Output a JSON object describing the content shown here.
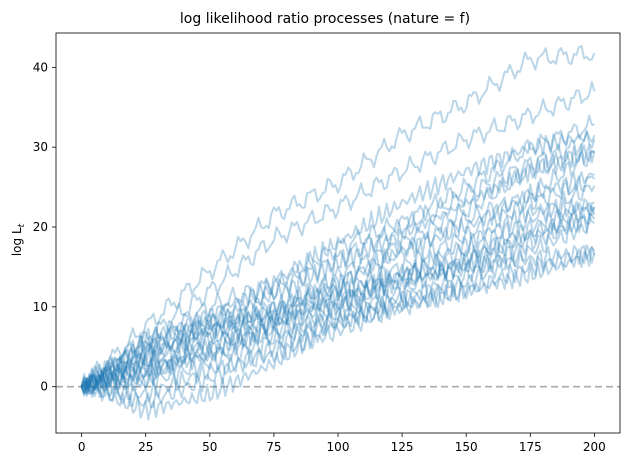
{
  "chart_data": {
    "type": "line",
    "title": "log likelihood ratio processes (nature = f)",
    "xlabel": "",
    "ylabel": "log L",
    "ylabel_subscript": "t",
    "xlim": [
      -10,
      210
    ],
    "ylim": [
      -5.8,
      44.3
    ],
    "xticks": [
      0,
      25,
      50,
      75,
      100,
      125,
      150,
      175,
      200
    ],
    "yticks": [
      0,
      10,
      20,
      30,
      40
    ],
    "grid": false,
    "line_color": "#1f77b4",
    "line_alpha": 0.3,
    "reference_line": {
      "y": 0,
      "style": "dashed",
      "color": "#aaaaaa"
    },
    "series": [
      {
        "x": [
          0,
          25,
          50,
          75,
          100,
          125,
          150,
          175,
          200
        ],
        "values": [
          0,
          7.5,
          14.5,
          21.5,
          25.5,
          31.5,
          35.5,
          41,
          41.8
        ]
      },
      {
        "x": [
          0,
          25,
          50,
          75,
          100,
          125,
          150,
          175,
          200
        ],
        "values": [
          0,
          6,
          12,
          18.5,
          22.5,
          27,
          31,
          34,
          37
        ]
      },
      {
        "x": [
          0,
          25,
          50,
          75,
          100,
          125,
          150,
          175,
          200
        ],
        "values": [
          0,
          5.5,
          10,
          13,
          17.5,
          20.5,
          25,
          30,
          32.8
        ]
      },
      {
        "x": [
          0,
          25,
          50,
          75,
          100,
          125,
          150,
          175,
          200
        ],
        "values": [
          0,
          4,
          8,
          12,
          16,
          20,
          24,
          28,
          31
        ]
      },
      {
        "x": [
          0,
          25,
          50,
          75,
          100,
          125,
          150,
          175,
          200
        ],
        "values": [
          0,
          5,
          8,
          9,
          14,
          18,
          22,
          27,
          29.5
        ]
      },
      {
        "x": [
          0,
          25,
          50,
          75,
          100,
          125,
          150,
          175,
          200
        ],
        "values": [
          0,
          3,
          6.5,
          9,
          13,
          17,
          21,
          24,
          29.3
        ]
      },
      {
        "x": [
          0,
          25,
          50,
          75,
          100,
          125,
          150,
          175,
          200
        ],
        "values": [
          0,
          2,
          5,
          8,
          12,
          15,
          19,
          23,
          26
        ]
      },
      {
        "x": [
          0,
          25,
          50,
          75,
          100,
          125,
          150,
          175,
          200
        ],
        "values": [
          0,
          1,
          5,
          7,
          10,
          14,
          17,
          21,
          25.2
        ]
      },
      {
        "x": [
          0,
          25,
          50,
          75,
          100,
          125,
          150,
          175,
          200
        ],
        "values": [
          0,
          2,
          4,
          6.5,
          9,
          12,
          16,
          19,
          22.5
        ]
      },
      {
        "x": [
          0,
          25,
          50,
          75,
          100,
          125,
          150,
          175,
          200
        ],
        "values": [
          0,
          0.5,
          3,
          6,
          8,
          11,
          14,
          18,
          21.5
        ]
      },
      {
        "x": [
          0,
          25,
          50,
          75,
          100,
          125,
          150,
          175,
          200
        ],
        "values": [
          0,
          -2,
          1,
          5,
          9,
          11,
          13,
          17,
          20.5
        ]
      },
      {
        "x": [
          0,
          25,
          50,
          75,
          100,
          125,
          150,
          175,
          200
        ],
        "values": [
          0,
          -1,
          2,
          4,
          7,
          10,
          12,
          15,
          16.8
        ]
      },
      {
        "x": [
          0,
          25,
          50,
          75,
          100,
          125,
          150,
          175,
          200
        ],
        "values": [
          0,
          1,
          6,
          8,
          10,
          13,
          16,
          20,
          23
        ]
      },
      {
        "x": [
          0,
          25,
          50,
          75,
          100,
          125,
          150,
          175,
          200
        ],
        "values": [
          0,
          4,
          7,
          10,
          12,
          14,
          15,
          16,
          17
        ]
      },
      {
        "x": [
          0,
          25,
          50,
          75,
          100,
          125,
          150,
          175,
          200
        ],
        "values": [
          0,
          3,
          7,
          10,
          13,
          17,
          20,
          24,
          26.5
        ]
      },
      {
        "x": [
          0,
          25,
          50,
          75,
          100,
          125,
          150,
          175,
          200
        ],
        "values": [
          0,
          4,
          7.5,
          9,
          11,
          14,
          18,
          22,
          22.5
        ]
      },
      {
        "x": [
          0,
          25,
          50,
          75,
          100,
          125,
          150,
          175,
          200
        ],
        "values": [
          0,
          6,
          9,
          13,
          18,
          23,
          27,
          30,
          31.5
        ]
      },
      {
        "x": [
          0,
          25,
          50,
          75,
          100,
          125,
          150,
          175,
          200
        ],
        "values": [
          0,
          -3,
          -1,
          3,
          8,
          10,
          12,
          14,
          16.5
        ]
      },
      {
        "x": [
          0,
          25,
          50,
          75,
          100,
          125,
          150,
          175,
          200
        ],
        "values": [
          0,
          2.5,
          4,
          8,
          11,
          13,
          15,
          19,
          21
        ]
      },
      {
        "x": [
          0,
          25,
          50,
          75,
          100,
          125,
          150,
          175,
          200
        ],
        "values": [
          0,
          5,
          8.5,
          11.5,
          15.5,
          19,
          23,
          27,
          29.5
        ]
      }
    ]
  }
}
